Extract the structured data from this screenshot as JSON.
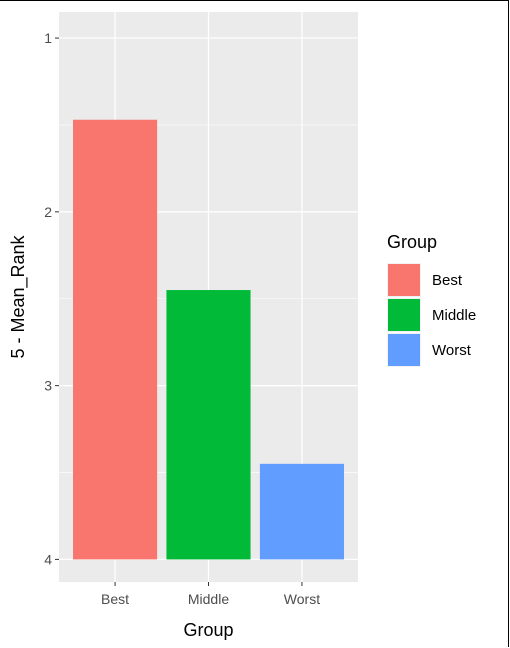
{
  "chart_data": {
    "type": "bar",
    "categories": [
      "Best",
      "Middle",
      "Worst"
    ],
    "values": [
      1.47,
      2.45,
      3.45
    ],
    "colors": [
      "#F8766D",
      "#00BA38",
      "#619CFF"
    ],
    "xlabel": "Group",
    "ylabel": "5 - Mean_Rank",
    "y_axis_reversed": true,
    "ylim": [
      0.85,
      4.13
    ],
    "yticks": [
      1,
      2,
      3,
      4
    ],
    "bar_baseline": 4,
    "grid": true,
    "legend": {
      "title": "Group",
      "placement": "right",
      "entries": [
        "Best",
        "Middle",
        "Worst"
      ]
    }
  }
}
